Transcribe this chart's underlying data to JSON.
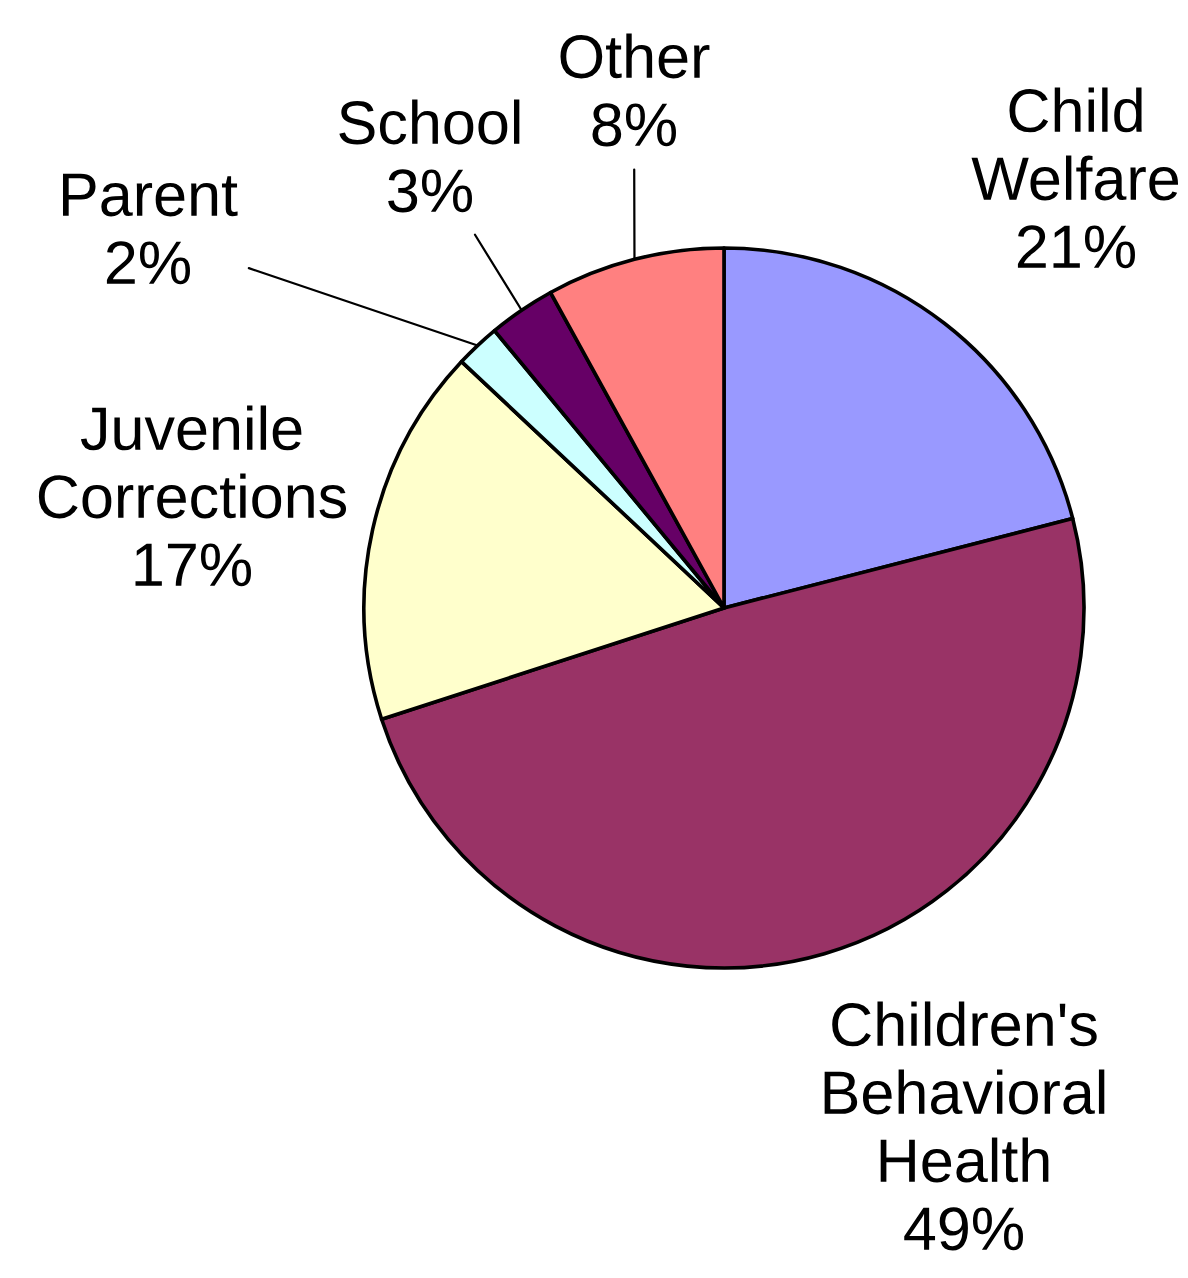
{
  "chart_data": {
    "type": "pie",
    "categories": [
      "Child Welfare",
      "Children's Behavioral Health",
      "Juvenile Corrections",
      "Parent",
      "School",
      "Other"
    ],
    "values": [
      21,
      49,
      17,
      2,
      3,
      8
    ],
    "colors": [
      "#9999ff",
      "#993366",
      "#ffffcc",
      "#ccffff",
      "#660066",
      "#ff8080"
    ],
    "value_labels": [
      "21%",
      "49%",
      "17%",
      "2%",
      "3%",
      "8%"
    ]
  }
}
